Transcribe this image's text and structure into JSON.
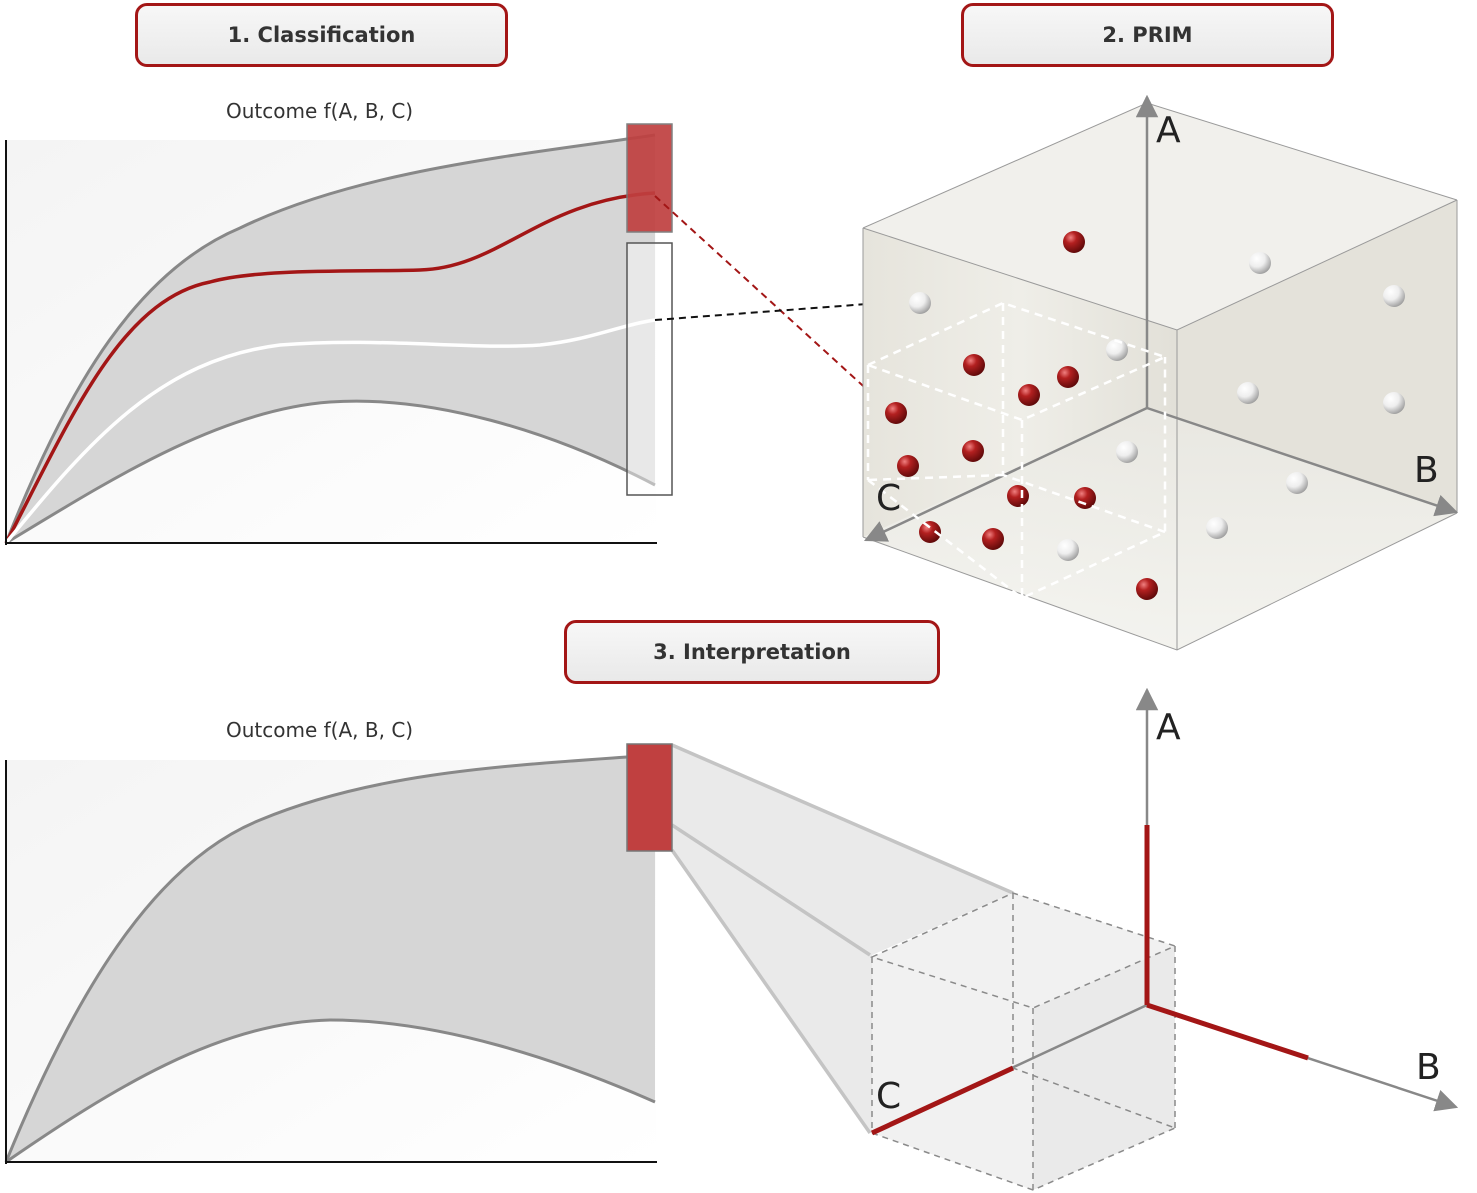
{
  "steps": {
    "classification": "1. Classification",
    "prim": "2. PRIM",
    "interpretation": "3. Interpretation"
  },
  "outcome_label": "Outcome f(A, B, C)",
  "axes": {
    "a": "A",
    "b": "B",
    "c": "C"
  },
  "colors": {
    "accent_red": "#a31616",
    "band_gray": "#d6d6d6",
    "line_gray": "#888888",
    "point_white": "#f2f2f2"
  }
}
